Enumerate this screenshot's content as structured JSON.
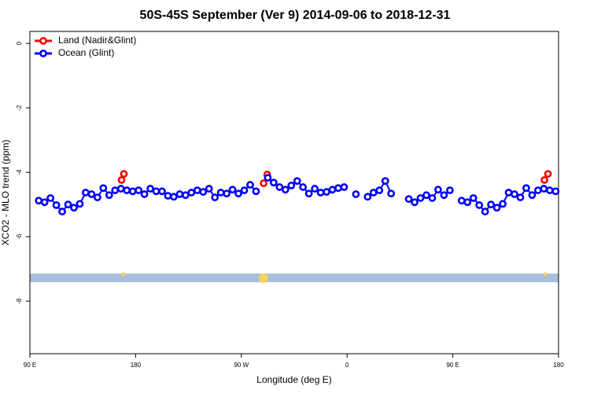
{
  "chart_data": {
    "type": "line",
    "title": "50S-45S September (Ver 9)   2014-09-06 to 2018-12-31",
    "x_label": "Longitude (deg E)",
    "y_label": "XCO2 - MLO trend (ppm)",
    "xlim": [
      90,
      540
    ],
    "xticks": [
      {
        "value": 90,
        "label": "90 E"
      },
      180,
      {
        "value": 270,
        "label": "90 W"
      },
      {
        "value": 360,
        "label": "0"
      },
      {
        "value": 450,
        "label": "90 E"
      },
      {
        "value": 540,
        "label": "180"
      }
    ],
    "ylim": [
      -9.63,
      0.37
    ],
    "yticks": [
      0,
      -2,
      -4,
      -6,
      -8
    ],
    "legend": "top-left",
    "series": [
      {
        "name": "Land (Nadir&Glint)",
        "color": "#ff0000",
        "x": [
          168,
          170,
          289,
          292,
          528,
          531
        ],
        "values": [
          -4.24,
          -4.05,
          -4.34,
          -4.07,
          -4.24,
          -4.05
        ]
      },
      {
        "name": "Ocean (Glint)",
        "color": "#0000ff",
        "x": [
          97.5,
          102.5,
          107.5,
          112.5,
          117.5,
          122.5,
          127.5,
          132.5,
          137.5,
          142.5,
          147.5,
          152.5,
          157.5,
          162.5,
          167.5,
          172.5,
          177.5,
          182.5,
          187.5,
          192.5,
          197.5,
          202.5,
          207.5,
          212.5,
          217.5,
          222.5,
          227.5,
          232.5,
          237.5,
          242.5,
          247.5,
          252.5,
          257.5,
          262.5,
          267.5,
          272.5,
          277.5,
          282.5,
          287.5,
          292.5,
          297.5,
          302.5,
          307.5,
          312.5,
          317.5,
          322.5,
          327.5,
          332.5,
          337.5,
          342.5,
          347.5,
          352.5,
          357.5,
          362.5,
          367.5,
          372.5,
          377.5,
          382.5,
          387.5,
          392.5,
          397.5,
          402.5,
          407.5,
          412.5,
          417.5,
          422.5,
          427.5,
          432.5,
          437.5,
          442.5,
          447.5,
          452.5,
          457.5,
          462.5,
          467.5,
          472.5,
          477.5,
          482.5,
          487.5,
          492.5,
          497.5,
          502.5,
          507.5,
          512.5,
          517.5,
          522.5,
          527.5,
          532.5,
          537.5
        ],
        "values": [
          -4.88,
          -4.93,
          -4.8,
          -5.02,
          -5.22,
          -5.0,
          -5.1,
          -4.98,
          -4.63,
          -4.68,
          -4.78,
          -4.49,
          -4.71,
          -4.56,
          -4.51,
          -4.56,
          -4.59,
          -4.56,
          -4.68,
          -4.51,
          -4.59,
          -4.59,
          -4.73,
          -4.76,
          -4.68,
          -4.71,
          -4.63,
          -4.56,
          -4.61,
          -4.51,
          -4.78,
          -4.63,
          -4.66,
          -4.54,
          -4.66,
          -4.56,
          -4.39,
          -4.59,
          null,
          -4.17,
          -4.32,
          -4.46,
          -4.54,
          -4.41,
          -4.27,
          -4.46,
          -4.66,
          -4.51,
          -4.63,
          -4.61,
          -4.54,
          -4.49,
          -4.46,
          null,
          -4.68,
          null,
          -4.76,
          -4.63,
          -4.56,
          -4.27,
          -4.66,
          null,
          null,
          -4.83,
          -4.93,
          -4.8,
          -4.71,
          -4.8,
          -4.54,
          -4.71,
          -4.56,
          null,
          -4.88,
          -4.93,
          -4.8,
          -5.02,
          -5.22,
          -5.0,
          -5.1,
          -4.98,
          -4.63,
          -4.68,
          -4.78,
          -4.49,
          -4.71,
          -4.56,
          -4.51,
          -4.56,
          -4.59
        ]
      }
    ]
  }
}
